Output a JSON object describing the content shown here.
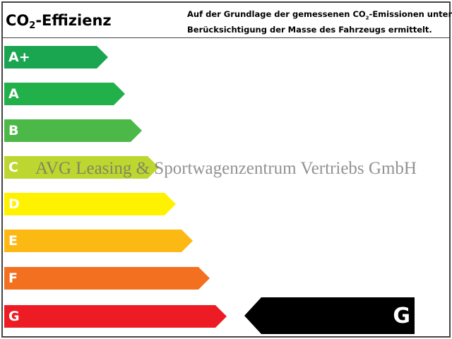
{
  "header": {
    "title_prefix": "CO",
    "title_sub": "2",
    "title_suffix": "-Effizienz",
    "desc_line1_a": "Auf der Grundlage der gemessenen CO",
    "desc_line1_sub": "2",
    "desc_line1_b": "-Emissionen unter",
    "desc_line2": "Berücksichtigung der Masse des Fahrzeugs ermittelt."
  },
  "classes": [
    {
      "label": "A+",
      "color": "#1aa550"
    },
    {
      "label": "A",
      "color": "#22b04b"
    },
    {
      "label": "B",
      "color": "#4cb848"
    },
    {
      "label": "C",
      "color": "#bdd630"
    },
    {
      "label": "D",
      "color": "#fff200"
    },
    {
      "label": "E",
      "color": "#fdb913"
    },
    {
      "label": "F",
      "color": "#f37021"
    },
    {
      "label": "G",
      "color": "#ed1c24"
    }
  ],
  "rating": {
    "label": "G",
    "color": "#000000"
  },
  "watermark": "AVG Leasing & Sportwagenzentrum Vertriebs GmbH"
}
